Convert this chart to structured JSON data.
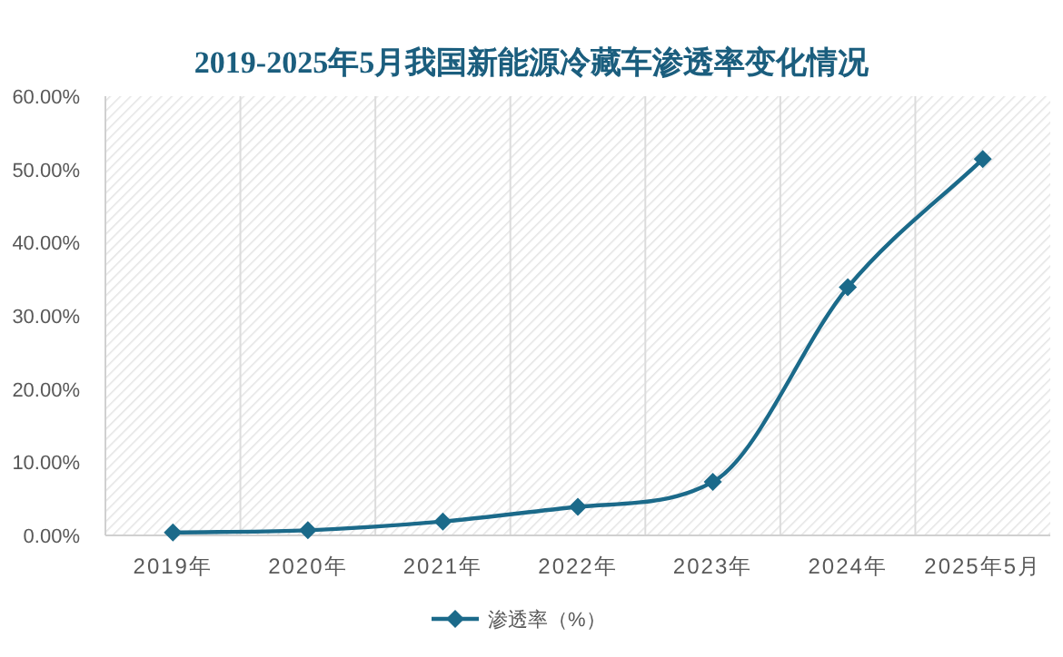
{
  "chart_data": {
    "type": "line",
    "title": "2019-2025年5月我国新能源冷藏车渗透率变化情况",
    "categories": [
      "2019年",
      "2020年",
      "2021年",
      "2022年",
      "2023年",
      "2024年",
      "2025年5月"
    ],
    "series": [
      {
        "name": "渗透率（%）",
        "color": "#1b6a8a",
        "values": [
          0.4,
          0.7,
          1.9,
          3.9,
          7.3,
          33.9,
          51.4
        ]
      }
    ],
    "ylim": [
      0,
      60
    ],
    "yticks": [
      {
        "value": 0,
        "label": "0.00%"
      },
      {
        "value": 10,
        "label": "10.00%"
      },
      {
        "value": 20,
        "label": "20.00%"
      },
      {
        "value": 30,
        "label": "30.00%"
      },
      {
        "value": 40,
        "label": "40.00%"
      },
      {
        "value": 50,
        "label": "50.00%"
      },
      {
        "value": 60,
        "label": "60.00%"
      }
    ],
    "grid": "x",
    "legend": "bottom",
    "marker": "diamond",
    "line_style": "solid"
  }
}
